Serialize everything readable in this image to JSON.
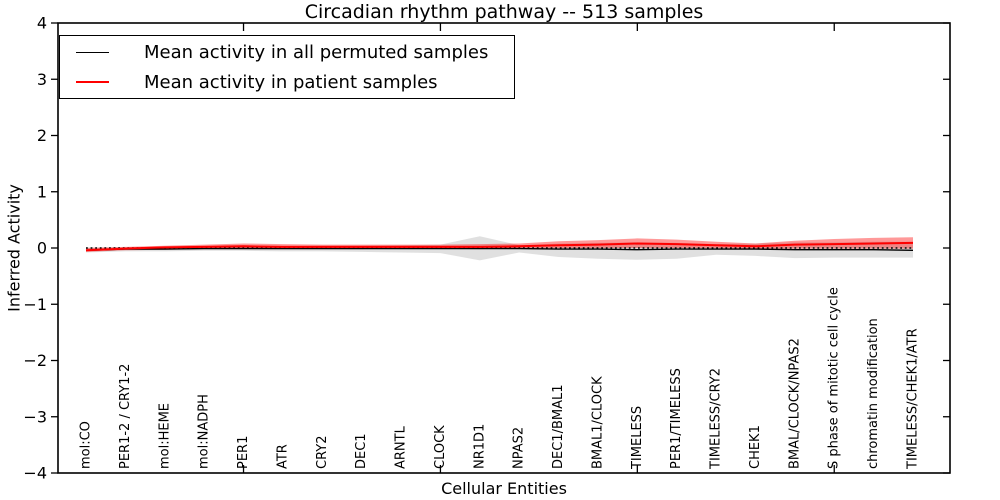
{
  "title": "Circadian rhythm pathway -- 513 samples",
  "axes": {
    "xlabel": "Cellular Entities",
    "ylabel": "Inferred Activity"
  },
  "legend": {
    "items": [
      {
        "label": "Mean activity in all permuted samples",
        "color": "#000000",
        "line_width": 1.4
      },
      {
        "label": "Mean activity in patient samples",
        "color": "#ff0000",
        "line_width": 2
      }
    ]
  },
  "colors": {
    "permuted_line": "#000000",
    "patient_line": "#ff0000",
    "permuted_band": "rgba(0,0,0,0.12)",
    "patient_band": "rgba(255,0,0,0.40)",
    "axis": "#000000"
  },
  "chart_data": {
    "type": "line",
    "title": "Circadian rhythm pathway -- 513 samples",
    "xlabel": "Cellular Entities",
    "ylabel": "Inferred Activity",
    "ylim": [
      -4,
      4
    ],
    "yticks": [
      4,
      3,
      2,
      1,
      0,
      -1,
      -2,
      -3,
      -4
    ],
    "grid": false,
    "legend_position": "upper-left",
    "zero_reference_line": true,
    "top_tick_category_indices": [
      4,
      9,
      14,
      19
    ],
    "categories": [
      "mol:CO",
      "PER1-2 / CRY1-2",
      "mol:HEME",
      "mol:NADPH",
      "PER1",
      "ATR",
      "CRY2",
      "DEC1",
      "ARNTL",
      "CLOCK",
      "NR1D1",
      "NPAS2",
      "DEC1/BMAL1",
      "BMAL1/CLOCK",
      "TIMELESS",
      "PER1/TIMELESS",
      "TIMELESS/CRY2",
      "CHEK1",
      "BMAL/CLOCK/NPAS2",
      "S phase of mitotic cell cycle",
      "chromatin modification",
      "TIMELESS/CHEK1/ATR"
    ],
    "series": [
      {
        "name": "Mean activity in all permuted samples",
        "color": "#000000",
        "values": [
          -0.04,
          -0.02,
          -0.02,
          -0.01,
          -0.01,
          -0.01,
          -0.01,
          -0.01,
          -0.01,
          -0.01,
          -0.01,
          -0.01,
          -0.02,
          -0.02,
          -0.03,
          -0.02,
          -0.02,
          -0.02,
          -0.03,
          -0.03,
          -0.03,
          -0.04
        ]
      },
      {
        "name": "Mean activity in patient samples",
        "color": "#ff0000",
        "values": [
          -0.04,
          -0.01,
          0.01,
          0.02,
          0.03,
          0.02,
          0.02,
          0.02,
          0.02,
          0.02,
          0.02,
          0.03,
          0.05,
          0.06,
          0.08,
          0.07,
          0.05,
          0.03,
          0.06,
          0.07,
          0.08,
          0.09
        ]
      }
    ],
    "bands": [
      {
        "name": "permuted-confidence-band",
        "fill": "rgba(0,0,0,0.12)",
        "upper": [
          0.01,
          0.01,
          0.02,
          0.02,
          0.03,
          0.03,
          0.04,
          0.04,
          0.05,
          0.06,
          0.21,
          0.05,
          0.08,
          0.09,
          0.1,
          0.09,
          0.07,
          0.08,
          0.1,
          0.1,
          0.11,
          0.11
        ],
        "lower": [
          -0.08,
          -0.06,
          -0.06,
          -0.05,
          -0.05,
          -0.06,
          -0.06,
          -0.07,
          -0.08,
          -0.09,
          -0.22,
          -0.08,
          -0.16,
          -0.19,
          -0.21,
          -0.19,
          -0.12,
          -0.14,
          -0.18,
          -0.17,
          -0.17,
          -0.17
        ]
      },
      {
        "name": "patient-confidence-band",
        "fill": "rgba(255,0,0,0.40)",
        "upper": [
          0.0,
          0.02,
          0.04,
          0.06,
          0.08,
          0.07,
          0.06,
          0.06,
          0.06,
          0.06,
          0.07,
          0.08,
          0.12,
          0.14,
          0.17,
          0.15,
          0.11,
          0.08,
          0.13,
          0.16,
          0.18,
          0.19
        ],
        "lower": [
          -0.07,
          -0.04,
          -0.03,
          -0.02,
          -0.02,
          -0.02,
          -0.02,
          -0.02,
          -0.01,
          -0.01,
          -0.02,
          -0.01,
          0.0,
          0.0,
          0.0,
          0.0,
          0.0,
          -0.01,
          -0.01,
          -0.01,
          -0.01,
          -0.01
        ]
      }
    ]
  }
}
